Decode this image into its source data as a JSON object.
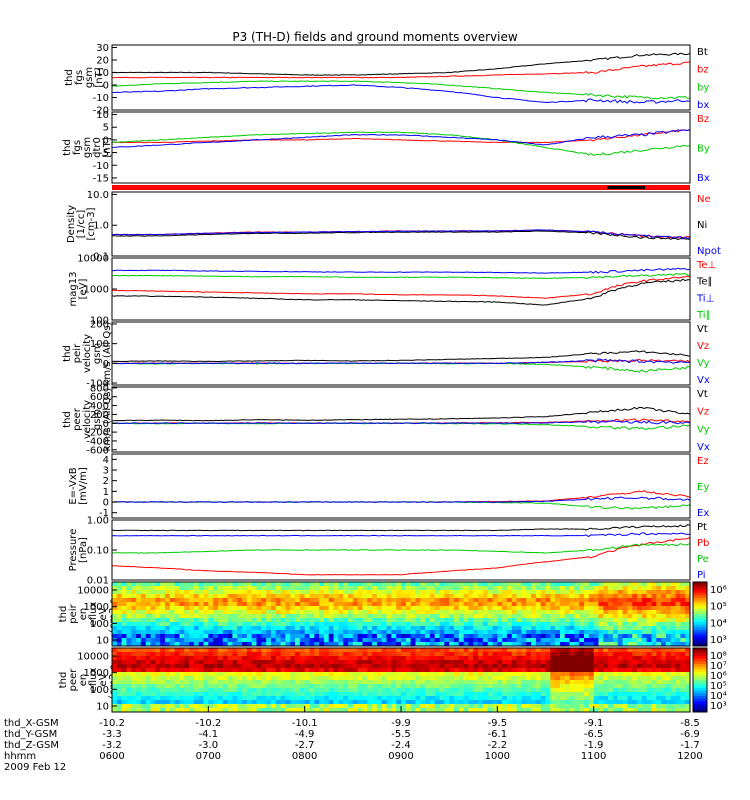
{
  "title": "P3 (TH-D) fields and ground moments overview",
  "colors": {
    "black": "#000000",
    "red": "#ff0000",
    "green": "#00cc00",
    "blue": "#0000ff"
  },
  "chart_data": [
    {
      "type": "line",
      "ylabel": [
        "thd",
        "fgs",
        "gsm",
        "[nT]"
      ],
      "y_ticks": [
        "30",
        "20",
        "10",
        "0",
        "-10",
        "-20"
      ],
      "ylim": [
        -20,
        32
      ],
      "series": [
        {
          "name": "Bt",
          "color": "#000000",
          "values": [
            10,
            10,
            10,
            9,
            8,
            8,
            9,
            10,
            13,
            17,
            20,
            24,
            25
          ]
        },
        {
          "name": "bz",
          "color": "#ff0000",
          "values": [
            6,
            6,
            6,
            6,
            6,
            6,
            6,
            7,
            8,
            9,
            10,
            15,
            18
          ]
        },
        {
          "name": "by",
          "color": "#00cc00",
          "values": [
            -1,
            1,
            2,
            3,
            3,
            3,
            2,
            0,
            -3,
            -6,
            -8,
            -10,
            -10
          ]
        },
        {
          "name": "bx",
          "color": "#0000ff",
          "values": [
            -6,
            -5,
            -3,
            -2,
            -1,
            0,
            -2,
            -5,
            -10,
            -14,
            -12,
            -14,
            -12
          ]
        }
      ]
    },
    {
      "type": "line",
      "ylabel": [
        "thd",
        "fgs",
        "gsm",
        "dtr0",
        "[nT]"
      ],
      "y_ticks": [
        "10",
        "5",
        "0",
        "-5",
        "-10",
        "-15"
      ],
      "ylim": [
        -17,
        11
      ],
      "series": [
        {
          "name": "Bz",
          "color": "#ff0000",
          "values": [
            -1,
            -1,
            -0.5,
            0,
            0,
            0.5,
            0,
            -0.5,
            -1,
            -1,
            0,
            2,
            4
          ]
        },
        {
          "name": "By",
          "color": "#00cc00",
          "values": [
            -1,
            0,
            1,
            2,
            2.5,
            3,
            3,
            2,
            0,
            -3,
            -6,
            -4,
            -2
          ]
        },
        {
          "name": "Bx",
          "color": "#0000ff",
          "values": [
            -3,
            -2,
            -1,
            0,
            1,
            2,
            2,
            1,
            0,
            -2,
            1,
            2,
            4
          ]
        }
      ]
    },
    {
      "type": "line",
      "ylog": true,
      "ylabel": [
        "Density",
        "[1/cc]",
        "[cm-3]"
      ],
      "y_ticks": [
        "10.0",
        "1.0",
        "0.1"
      ],
      "ylim": [
        0.1,
        12
      ],
      "series": [
        {
          "name": "Ne",
          "color": "#ff0000",
          "values": [
            0.5,
            0.5,
            0.55,
            0.6,
            0.6,
            0.62,
            0.65,
            0.65,
            0.65,
            0.7,
            0.6,
            0.45,
            0.4
          ]
        },
        {
          "name": "Ni",
          "color": "#000000",
          "values": [
            0.45,
            0.45,
            0.5,
            0.55,
            0.55,
            0.58,
            0.6,
            0.6,
            0.6,
            0.65,
            0.55,
            0.4,
            0.35
          ]
        },
        {
          "name": "Npot",
          "color": "#0000ff",
          "values": [
            0.5,
            0.5,
            0.55,
            0.58,
            0.6,
            0.62,
            0.64,
            0.65,
            0.65,
            0.7,
            0.6,
            0.45,
            0.38
          ]
        }
      ]
    },
    {
      "type": "line",
      "ylog": true,
      "ylabel": [
        "mag13",
        "[eV]"
      ],
      "y_ticks": [
        "10000",
        "1000",
        "100"
      ],
      "ylim": [
        100,
        10000
      ],
      "series": [
        {
          "name": "Te⊥",
          "color": "#ff0000",
          "values": [
            900,
            850,
            800,
            750,
            700,
            700,
            650,
            650,
            600,
            500,
            700,
            1800,
            2500
          ]
        },
        {
          "name": "Te∥",
          "color": "#000000",
          "values": [
            600,
            580,
            550,
            500,
            450,
            450,
            420,
            400,
            380,
            300,
            500,
            1500,
            2000
          ]
        },
        {
          "name": "Ti⊥",
          "color": "#0000ff",
          "values": [
            4000,
            4000,
            3800,
            3700,
            3600,
            3500,
            3500,
            3500,
            3400,
            3300,
            3500,
            4000,
            4500
          ]
        },
        {
          "name": "Ti∥",
          "color": "#00cc00",
          "values": [
            2700,
            2700,
            2600,
            2500,
            2500,
            2400,
            2400,
            2400,
            2300,
            2200,
            2400,
            2700,
            3000
          ]
        }
      ]
    },
    {
      "type": "line",
      "ylabel": [
        "thd",
        "peir",
        "velocity",
        "gsm",
        "km/s (All Qs)"
      ],
      "y_ticks": [
        "200",
        "100",
        "0",
        "-100"
      ],
      "ylim": [
        -110,
        210
      ],
      "series": [
        {
          "name": "Vt",
          "color": "#000000",
          "values": [
            10,
            12,
            10,
            12,
            15,
            12,
            15,
            20,
            25,
            30,
            50,
            60,
            40
          ]
        },
        {
          "name": "Vz",
          "color": "#ff0000",
          "values": [
            0,
            2,
            0,
            2,
            0,
            1,
            0,
            2,
            0,
            5,
            10,
            15,
            10
          ]
        },
        {
          "name": "Vy",
          "color": "#00cc00",
          "values": [
            0,
            -2,
            0,
            -2,
            0,
            -1,
            0,
            -2,
            0,
            -5,
            -20,
            -40,
            -20
          ]
        },
        {
          "name": "Vx",
          "color": "#0000ff",
          "values": [
            0,
            1,
            0,
            1,
            0,
            1,
            0,
            1,
            0,
            5,
            15,
            10,
            5
          ]
        }
      ]
    },
    {
      "type": "line",
      "ylabel": [
        "thd",
        "peer",
        "velocity",
        "gsm",
        "km/s (All Qs)"
      ],
      "y_ticks": [
        "800",
        "600",
        "400",
        "200",
        "0",
        "-200",
        "-400",
        "-600"
      ],
      "ylim": [
        -650,
        820
      ],
      "series": [
        {
          "name": "Vt",
          "color": "#000000",
          "values": [
            60,
            70,
            60,
            80,
            70,
            80,
            90,
            100,
            120,
            150,
            250,
            350,
            200
          ]
        },
        {
          "name": "Vz",
          "color": "#ff0000",
          "values": [
            0,
            5,
            0,
            10,
            0,
            5,
            0,
            10,
            10,
            20,
            50,
            80,
            40
          ]
        },
        {
          "name": "Vy",
          "color": "#00cc00",
          "values": [
            0,
            -10,
            0,
            -10,
            0,
            -5,
            0,
            -10,
            -10,
            -30,
            -80,
            -120,
            -60
          ]
        },
        {
          "name": "Vx",
          "color": "#0000ff",
          "values": [
            0,
            5,
            0,
            5,
            0,
            5,
            0,
            5,
            0,
            10,
            30,
            20,
            10
          ]
        }
      ]
    },
    {
      "type": "line",
      "ylabel": [
        "E=-VxB",
        "[mV/m]"
      ],
      "y_ticks": [
        "4",
        "3",
        "2",
        "1",
        "0",
        "-1"
      ],
      "ylim": [
        -1.5,
        4.5
      ],
      "series": [
        {
          "name": "Ez",
          "color": "#ff0000",
          "values": [
            0,
            0,
            0,
            0,
            0,
            0,
            0,
            0,
            0.05,
            0.1,
            0.5,
            1.0,
            0.5
          ]
        },
        {
          "name": "Ey",
          "color": "#00cc00",
          "values": [
            0,
            0,
            0,
            0,
            0,
            0,
            0,
            0,
            -0.05,
            -0.1,
            -0.5,
            -0.6,
            -0.3
          ]
        },
        {
          "name": "Ex",
          "color": "#0000ff",
          "values": [
            0,
            0,
            0,
            0,
            0,
            0,
            0,
            0,
            0,
            0.05,
            0.3,
            0.4,
            0.2
          ]
        }
      ]
    },
    {
      "type": "line",
      "ylog": true,
      "ylabel": [
        "Pressure",
        "[nPa]"
      ],
      "y_ticks": [
        "1.00",
        "0.10",
        "0.01"
      ],
      "ylim": [
        0.01,
        1.0
      ],
      "series": [
        {
          "name": "Pt",
          "color": "#000000",
          "values": [
            0.45,
            0.45,
            0.45,
            0.45,
            0.45,
            0.45,
            0.45,
            0.45,
            0.45,
            0.5,
            0.5,
            0.6,
            0.65
          ]
        },
        {
          "name": "Pb",
          "color": "#ff0000",
          "values": [
            0.03,
            0.025,
            0.02,
            0.018,
            0.015,
            0.015,
            0.015,
            0.02,
            0.025,
            0.04,
            0.06,
            0.15,
            0.25
          ]
        },
        {
          "name": "Pe",
          "color": "#00cc00",
          "values": [
            0.08,
            0.08,
            0.09,
            0.1,
            0.1,
            0.1,
            0.1,
            0.1,
            0.09,
            0.08,
            0.1,
            0.15,
            0.15
          ]
        },
        {
          "name": "Pi",
          "color": "#0000ff",
          "values": [
            0.3,
            0.3,
            0.3,
            0.3,
            0.3,
            0.3,
            0.3,
            0.3,
            0.3,
            0.3,
            0.3,
            0.35,
            0.35
          ]
        }
      ]
    },
    {
      "type": "heatmap",
      "ylabel": [
        "thd",
        "peir",
        "en",
        "eflux",
        "eV",
        "(cm2-s-",
        "sr-eV)"
      ],
      "y_ticks": [
        "10000",
        "1000",
        "100",
        "10"
      ],
      "colorbar_ticks": [
        "10⁶",
        "10⁵",
        "10⁴",
        "10³"
      ]
    },
    {
      "type": "heatmap",
      "ylabel": [
        "thd",
        "peer",
        "en",
        "eflux",
        "eV",
        "(cm2-s-",
        "sr-eV)"
      ],
      "y_ticks": [
        "10000",
        "1000",
        "100",
        "10"
      ],
      "colorbar_ticks": [
        "10⁸",
        "10⁷",
        "10⁶",
        "10⁵",
        "10⁴",
        "10³"
      ]
    }
  ],
  "ephemeris": {
    "labels": [
      "thd_X-GSM",
      "thd_Y-GSM",
      "thd_Z-GSM",
      "hhmm",
      "2009 Feb 12"
    ],
    "columns": [
      {
        "x": "-10.2",
        "y": "-3.3",
        "z": "-3.2",
        "t": "0600"
      },
      {
        "x": "-10.2",
        "y": "-4.1",
        "z": "-3.0",
        "t": "0700"
      },
      {
        "x": "-10.1",
        "y": "-4.9",
        "z": "-2.7",
        "t": "0800"
      },
      {
        "x": "-9.9",
        "y": "-5.5",
        "z": "-2.4",
        "t": "0900"
      },
      {
        "x": "-9.5",
        "y": "-6.1",
        "z": "-2.2",
        "t": "1000"
      },
      {
        "x": "-9.1",
        "y": "-6.5",
        "z": "-1.9",
        "t": "1100"
      },
      {
        "x": "-8.5",
        "y": "-6.9",
        "z": "-1.7",
        "t": "1200"
      }
    ]
  }
}
